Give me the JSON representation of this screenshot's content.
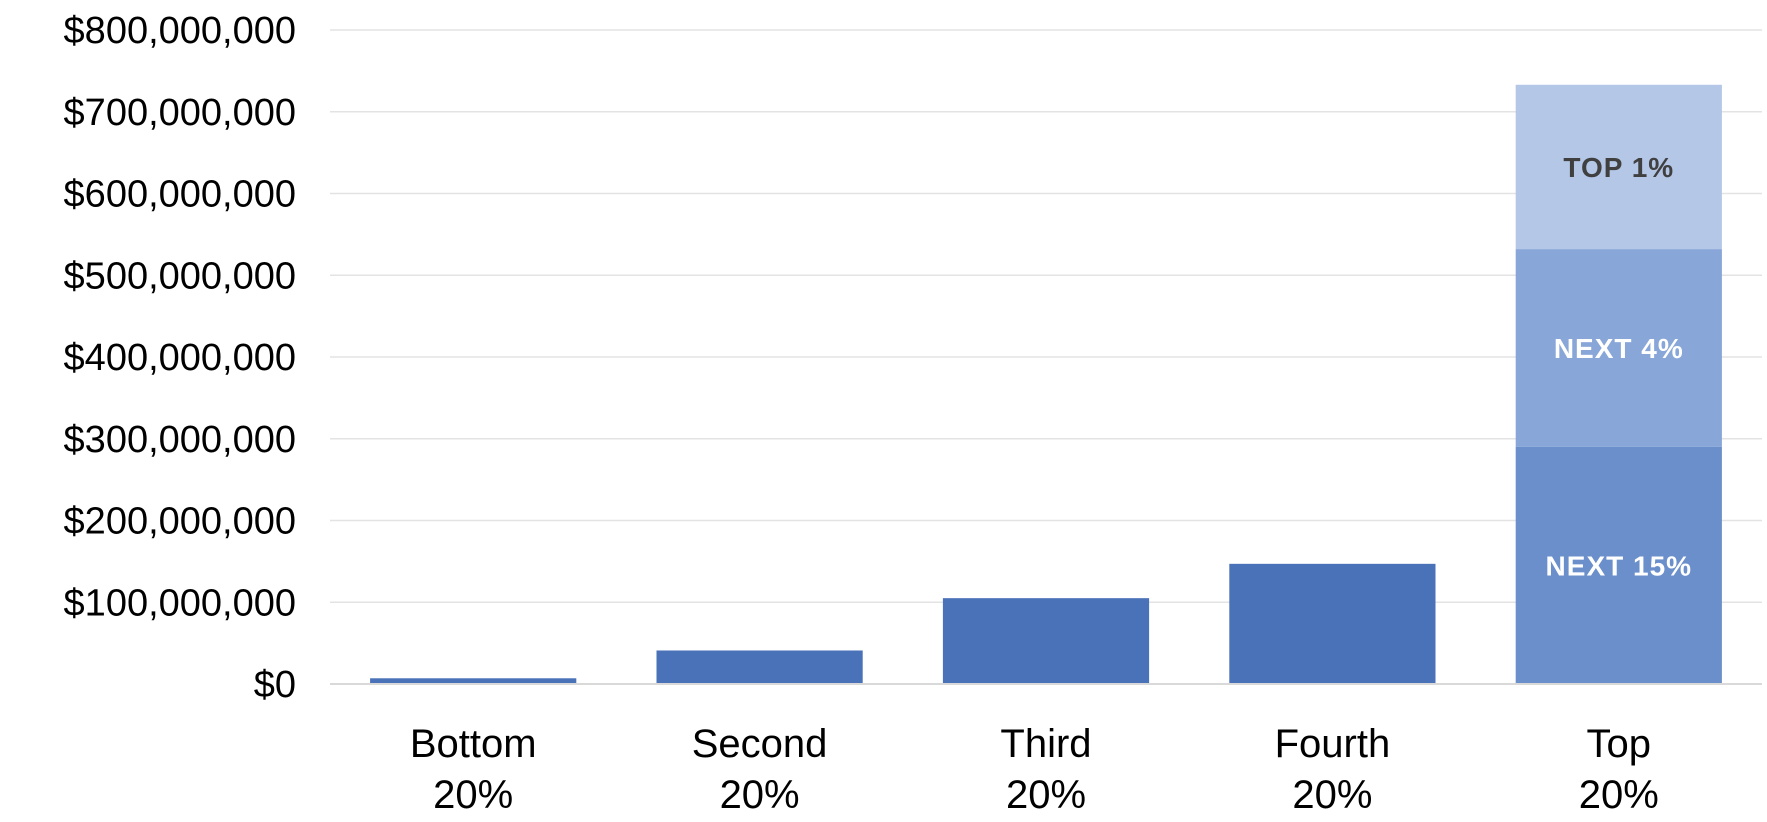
{
  "chart_data": {
    "type": "bar",
    "stacked": true,
    "title": "",
    "xlabel": "",
    "ylabel": "",
    "ylim": [
      0,
      800000000
    ],
    "y_ticks": [
      0,
      100000000,
      200000000,
      300000000,
      400000000,
      500000000,
      600000000,
      700000000,
      800000000
    ],
    "y_tick_labels": [
      "$0",
      "$100,000,000",
      "$200,000,000",
      "$300,000,000",
      "$400,000,000",
      "$500,000,000",
      "$600,000,000",
      "$700,000,000",
      "$800,000,000"
    ],
    "grid": true,
    "legend": "none",
    "categories": [
      {
        "line1": "Bottom",
        "line2": "20%"
      },
      {
        "line1": "Second",
        "line2": "20%"
      },
      {
        "line1": "Third",
        "line2": "20%"
      },
      {
        "line1": "Fourth",
        "line2": "20%"
      },
      {
        "line1": "Top",
        "line2": "20%"
      }
    ],
    "bars": [
      {
        "segments": [
          {
            "value": 7000000,
            "label": "",
            "color": "#4a72b8"
          }
        ]
      },
      {
        "segments": [
          {
            "value": 41000000,
            "label": "",
            "color": "#4a72b8"
          }
        ]
      },
      {
        "segments": [
          {
            "value": 105000000,
            "label": "",
            "color": "#4a72b8"
          }
        ]
      },
      {
        "segments": [
          {
            "value": 147000000,
            "label": "",
            "color": "#4a72b8"
          }
        ]
      },
      {
        "segments": [
          {
            "value": 290000000,
            "label": "NEXT 15%",
            "color": "#6b8fcb",
            "label_color": "#ffffff"
          },
          {
            "value": 242000000,
            "label": "NEXT 4%",
            "color": "#89a6d8",
            "label_color": "#ffffff"
          },
          {
            "value": 201000000,
            "label": "TOP 1%",
            "color": "#b4c7e7",
            "label_color": "#404040"
          }
        ]
      }
    ],
    "colors": {
      "bar": "#4a72b8",
      "grid": "#e3e3e3",
      "axis": "#d9d9d9"
    }
  }
}
